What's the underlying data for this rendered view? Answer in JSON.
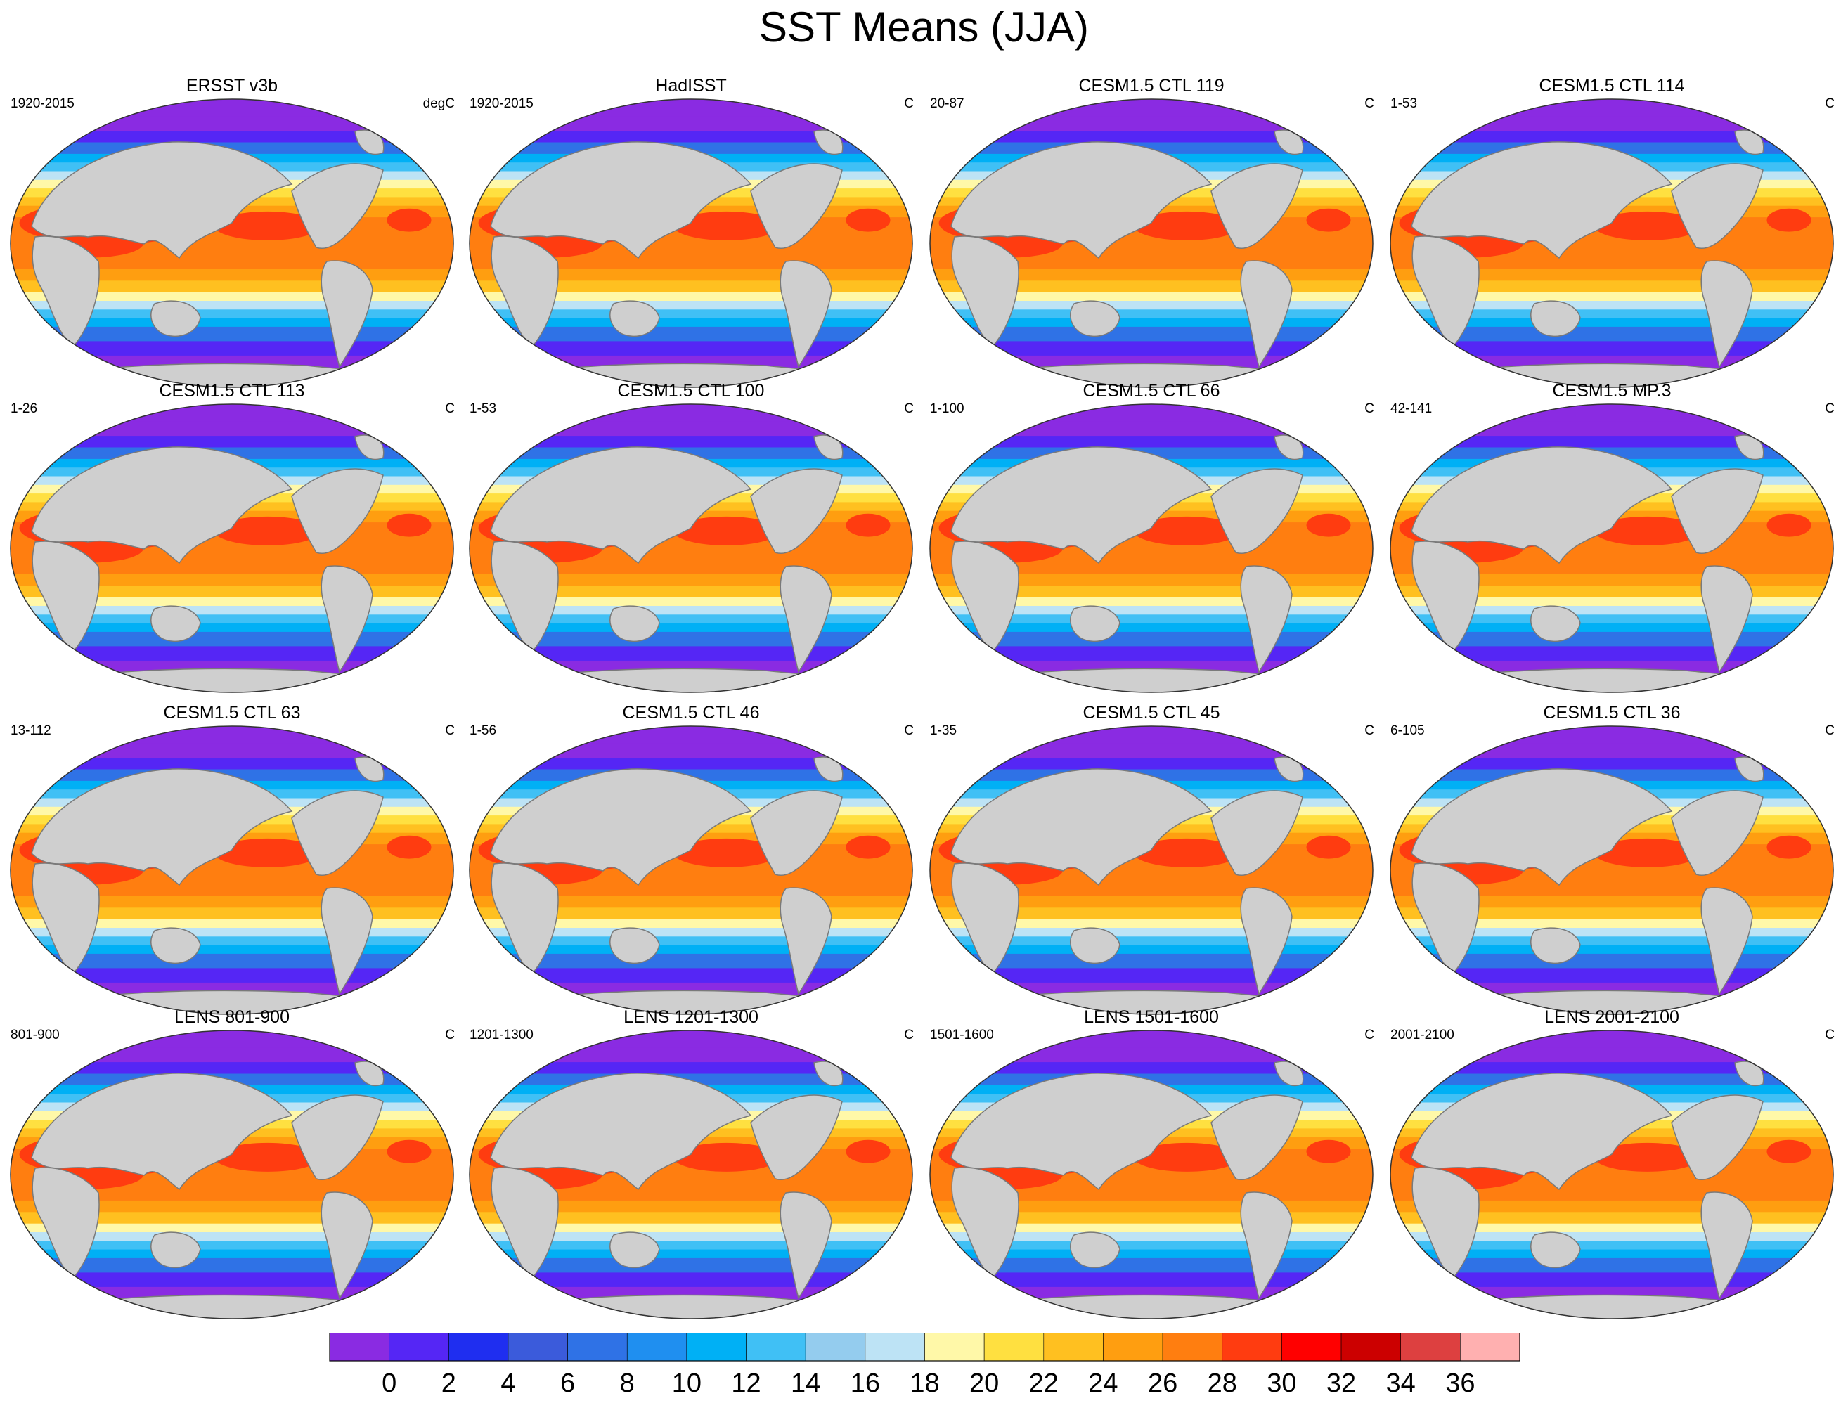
{
  "title": "SST Means (JJA)",
  "panels": [
    {
      "title": "ERSST v3b",
      "left": "1920-2015",
      "right": "degC",
      "obs": true
    },
    {
      "title": "HadISST",
      "left": "1920-2015",
      "right": "C",
      "obs": true
    },
    {
      "title": "CESM1.5 CTL 119",
      "left": "20-87",
      "right": "C"
    },
    {
      "title": "CESM1.5 CTL 114",
      "left": "1-53",
      "right": "C"
    },
    {
      "title": "CESM1.5 CTL 113",
      "left": "1-26",
      "right": "C"
    },
    {
      "title": "CESM1.5 CTL 100",
      "left": "1-53",
      "right": "C"
    },
    {
      "title": "CESM1.5 CTL 66",
      "left": "1-100",
      "right": "C"
    },
    {
      "title": "CESM1.5 MP.3",
      "left": "42-141",
      "right": "C"
    },
    {
      "title": "CESM1.5 CTL 63",
      "left": "13-112",
      "right": "C"
    },
    {
      "title": "CESM1.5 CTL 46",
      "left": "1-56",
      "right": "C"
    },
    {
      "title": "CESM1.5 CTL 45",
      "left": "1-35",
      "right": "C"
    },
    {
      "title": "CESM1.5 CTL 36",
      "left": "6-105",
      "right": "C"
    },
    {
      "title": "LENS 801-900",
      "left": "801-900",
      "right": "C"
    },
    {
      "title": "LENS 1201-1300",
      "left": "1201-1300",
      "right": "C"
    },
    {
      "title": "LENS 1501-1600",
      "left": "1501-1600",
      "right": "C"
    },
    {
      "title": "LENS 2001-2100",
      "left": "2001-2100",
      "right": "C"
    }
  ],
  "colorbar": {
    "labels": [
      "0",
      "2",
      "4",
      "6",
      "8",
      "10",
      "12",
      "14",
      "16",
      "18",
      "20",
      "22",
      "24",
      "26",
      "28",
      "30",
      "32",
      "34",
      "36"
    ],
    "colors": [
      "#8a2be2",
      "#5526f5",
      "#1f2ef0",
      "#3b5bdb",
      "#2f72e6",
      "#1f8ff0",
      "#00b0f5",
      "#40c0f5",
      "#94ccee",
      "#bde3f5",
      "#fff8a8",
      "#ffe040",
      "#ffc020",
      "#ff9e10",
      "#ff7e10",
      "#ff3c10",
      "#ff0000",
      "#cc0000",
      "#dd4040",
      "#ffb0b0"
    ]
  },
  "colors": {
    "land": "#cfcfcf",
    "coast": "#7a7a7a"
  }
}
